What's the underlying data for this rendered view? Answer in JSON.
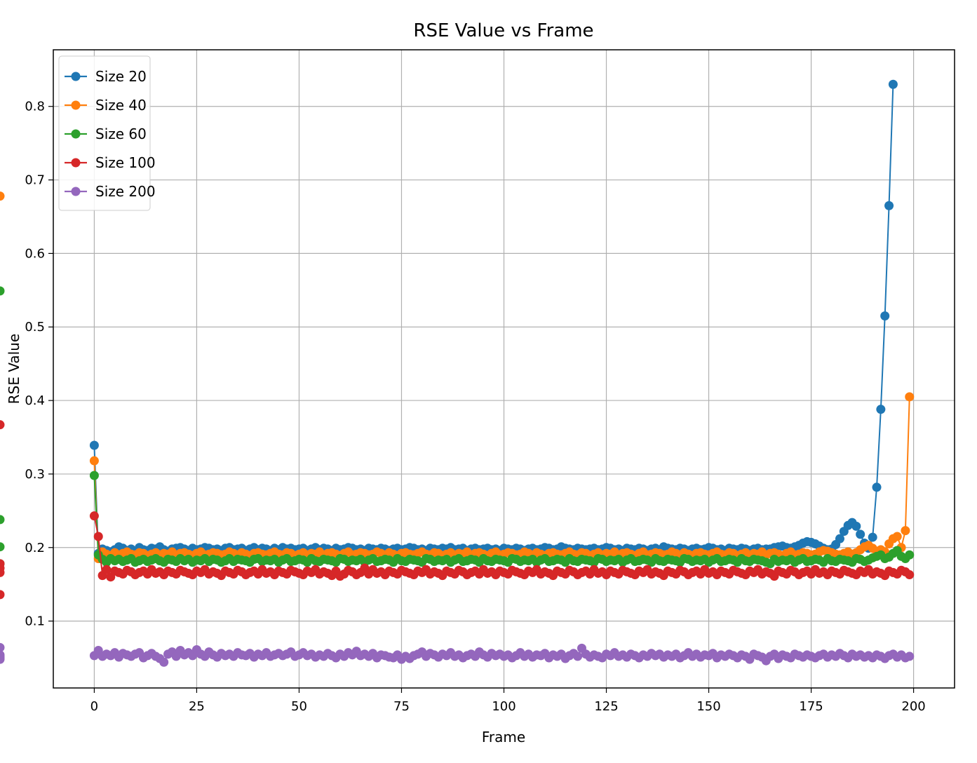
{
  "chart_data": {
    "type": "line",
    "title": "RSE Value vs Frame",
    "xlabel": "Frame",
    "ylabel": "RSE Value",
    "xlim": [
      -10,
      210
    ],
    "ylim": [
      0.009,
      0.877
    ],
    "xticks": [
      0,
      25,
      50,
      75,
      100,
      125,
      150,
      175,
      200
    ],
    "yticks": [
      0.1,
      0.2,
      0.3,
      0.4,
      0.5,
      0.6,
      0.7,
      0.8
    ],
    "grid": true,
    "legend_position": "top-left",
    "x": {
      "start": 0,
      "end": 199,
      "step": 1
    },
    "series": [
      {
        "name": "Size 20",
        "color": "#1f77b4",
        "values": [
          0.339,
          0.192,
          0.198,
          0.196,
          0.194,
          0.197,
          0.201,
          0.199,
          0.196,
          0.198,
          0.195,
          0.2,
          0.197,
          0.196,
          0.199,
          0.198,
          0.201,
          0.197,
          0.195,
          0.198,
          0.199,
          0.2,
          0.198,
          0.196,
          0.199,
          0.197,
          0.198,
          0.2,
          0.199,
          0.197,
          0.198,
          0.196,
          0.199,
          0.2,
          0.197,
          0.198,
          0.199,
          0.196,
          0.198,
          0.2,
          0.197,
          0.199,
          0.198,
          0.196,
          0.199,
          0.197,
          0.2,
          0.198,
          0.199,
          0.197,
          0.198,
          0.199,
          0.196,
          0.198,
          0.2,
          0.197,
          0.199,
          0.198,
          0.196,
          0.199,
          0.197,
          0.198,
          0.2,
          0.199,
          0.197,
          0.198,
          0.196,
          0.199,
          0.198,
          0.197,
          0.199,
          0.198,
          0.196,
          0.198,
          0.199,
          0.197,
          0.198,
          0.2,
          0.199,
          0.197,
          0.198,
          0.196,
          0.199,
          0.198,
          0.197,
          0.199,
          0.198,
          0.2,
          0.197,
          0.198,
          0.199,
          0.196,
          0.198,
          0.199,
          0.197,
          0.198,
          0.199,
          0.197,
          0.198,
          0.196,
          0.199,
          0.198,
          0.197,
          0.199,
          0.198,
          0.196,
          0.198,
          0.199,
          0.197,
          0.198,
          0.2,
          0.199,
          0.197,
          0.198,
          0.201,
          0.199,
          0.198,
          0.197,
          0.199,
          0.198,
          0.197,
          0.198,
          0.199,
          0.197,
          0.198,
          0.2,
          0.199,
          0.197,
          0.198,
          0.196,
          0.199,
          0.198,
          0.197,
          0.199,
          0.198,
          0.196,
          0.198,
          0.199,
          0.197,
          0.201,
          0.199,
          0.198,
          0.197,
          0.199,
          0.198,
          0.196,
          0.198,
          0.199,
          0.197,
          0.198,
          0.2,
          0.199,
          0.197,
          0.198,
          0.196,
          0.199,
          0.198,
          0.197,
          0.199,
          0.198,
          0.196,
          0.198,
          0.199,
          0.197,
          0.198,
          0.198,
          0.2,
          0.201,
          0.202,
          0.2,
          0.199,
          0.201,
          0.203,
          0.206,
          0.208,
          0.207,
          0.205,
          0.202,
          0.199,
          0.197,
          0.198,
          0.204,
          0.212,
          0.222,
          0.23,
          0.234,
          0.229,
          0.218,
          0.206,
          0.199,
          0.214,
          0.282,
          0.388,
          0.515,
          0.665,
          0.83
        ]
      },
      {
        "name": "Size 40",
        "color": "#ff7f0e",
        "values": [
          0.318,
          0.185,
          0.194,
          0.191,
          0.189,
          0.193,
          0.19,
          0.192,
          0.194,
          0.191,
          0.19,
          0.193,
          0.192,
          0.189,
          0.191,
          0.193,
          0.19,
          0.192,
          0.191,
          0.194,
          0.19,
          0.192,
          0.193,
          0.191,
          0.189,
          0.192,
          0.194,
          0.19,
          0.191,
          0.193,
          0.192,
          0.19,
          0.191,
          0.194,
          0.192,
          0.19,
          0.193,
          0.191,
          0.189,
          0.192,
          0.193,
          0.191,
          0.19,
          0.192,
          0.194,
          0.191,
          0.19,
          0.193,
          0.192,
          0.189,
          0.191,
          0.193,
          0.19,
          0.192,
          0.191,
          0.194,
          0.19,
          0.192,
          0.193,
          0.191,
          0.189,
          0.192,
          0.194,
          0.19,
          0.191,
          0.193,
          0.192,
          0.19,
          0.191,
          0.194,
          0.192,
          0.19,
          0.193,
          0.191,
          0.189,
          0.192,
          0.193,
          0.191,
          0.19,
          0.192,
          0.194,
          0.191,
          0.19,
          0.193,
          0.192,
          0.189,
          0.191,
          0.193,
          0.19,
          0.192,
          0.191,
          0.194,
          0.19,
          0.192,
          0.193,
          0.191,
          0.189,
          0.192,
          0.194,
          0.19,
          0.191,
          0.193,
          0.192,
          0.19,
          0.191,
          0.194,
          0.192,
          0.19,
          0.193,
          0.191,
          0.189,
          0.192,
          0.193,
          0.191,
          0.19,
          0.192,
          0.194,
          0.191,
          0.19,
          0.193,
          0.192,
          0.189,
          0.191,
          0.193,
          0.19,
          0.192,
          0.191,
          0.194,
          0.19,
          0.192,
          0.193,
          0.191,
          0.189,
          0.192,
          0.194,
          0.19,
          0.191,
          0.193,
          0.192,
          0.19,
          0.191,
          0.194,
          0.192,
          0.19,
          0.193,
          0.191,
          0.189,
          0.192,
          0.193,
          0.191,
          0.19,
          0.192,
          0.194,
          0.191,
          0.19,
          0.193,
          0.192,
          0.189,
          0.191,
          0.193,
          0.19,
          0.192,
          0.191,
          0.194,
          0.19,
          0.192,
          0.193,
          0.191,
          0.189,
          0.192,
          0.194,
          0.19,
          0.191,
          0.193,
          0.192,
          0.19,
          0.191,
          0.194,
          0.196,
          0.195,
          0.193,
          0.191,
          0.19,
          0.192,
          0.194,
          0.191,
          0.193,
          0.197,
          0.201,
          0.203,
          0.199,
          0.195,
          0.197,
          0.194,
          0.205,
          0.212,
          0.215,
          0.2,
          0.223,
          0.405,
          0.678
        ]
      },
      {
        "name": "Size 60",
        "color": "#2ca02c",
        "values": [
          0.298,
          0.19,
          0.184,
          0.18,
          0.185,
          0.182,
          0.184,
          0.181,
          0.183,
          0.185,
          0.18,
          0.182,
          0.184,
          0.181,
          0.183,
          0.185,
          0.182,
          0.18,
          0.184,
          0.183,
          0.181,
          0.185,
          0.182,
          0.184,
          0.18,
          0.183,
          0.182,
          0.185,
          0.181,
          0.184,
          0.183,
          0.18,
          0.182,
          0.185,
          0.181,
          0.184,
          0.183,
          0.182,
          0.18,
          0.184,
          0.185,
          0.181,
          0.183,
          0.182,
          0.184,
          0.18,
          0.183,
          0.185,
          0.181,
          0.182,
          0.184,
          0.183,
          0.18,
          0.185,
          0.182,
          0.181,
          0.184,
          0.183,
          0.182,
          0.18,
          0.185,
          0.184,
          0.181,
          0.183,
          0.182,
          0.184,
          0.18,
          0.183,
          0.185,
          0.181,
          0.182,
          0.184,
          0.183,
          0.18,
          0.185,
          0.182,
          0.181,
          0.184,
          0.183,
          0.182,
          0.18,
          0.185,
          0.184,
          0.181,
          0.183,
          0.182,
          0.184,
          0.18,
          0.183,
          0.185,
          0.181,
          0.182,
          0.184,
          0.183,
          0.18,
          0.185,
          0.182,
          0.181,
          0.184,
          0.183,
          0.182,
          0.18,
          0.185,
          0.184,
          0.181,
          0.183,
          0.182,
          0.184,
          0.18,
          0.183,
          0.185,
          0.181,
          0.182,
          0.184,
          0.183,
          0.18,
          0.185,
          0.182,
          0.181,
          0.184,
          0.183,
          0.182,
          0.18,
          0.185,
          0.184,
          0.181,
          0.183,
          0.182,
          0.184,
          0.18,
          0.183,
          0.185,
          0.181,
          0.182,
          0.184,
          0.183,
          0.18,
          0.185,
          0.182,
          0.181,
          0.184,
          0.183,
          0.182,
          0.18,
          0.185,
          0.184,
          0.181,
          0.183,
          0.182,
          0.184,
          0.18,
          0.183,
          0.185,
          0.181,
          0.182,
          0.184,
          0.183,
          0.18,
          0.185,
          0.182,
          0.181,
          0.184,
          0.183,
          0.182,
          0.18,
          0.178,
          0.184,
          0.181,
          0.183,
          0.182,
          0.184,
          0.18,
          0.183,
          0.185,
          0.181,
          0.182,
          0.184,
          0.183,
          0.18,
          0.185,
          0.182,
          0.181,
          0.184,
          0.183,
          0.182,
          0.18,
          0.185,
          0.184,
          0.181,
          0.183,
          0.186,
          0.188,
          0.19,
          0.185,
          0.187,
          0.192,
          0.196,
          0.188,
          0.185,
          0.19,
          0.201,
          0.178,
          0.238,
          0.549
        ]
      },
      {
        "name": "Size 100",
        "color": "#d62728",
        "values": [
          0.243,
          0.215,
          0.162,
          0.17,
          0.16,
          0.168,
          0.166,
          0.164,
          0.169,
          0.167,
          0.163,
          0.166,
          0.168,
          0.164,
          0.17,
          0.165,
          0.167,
          0.163,
          0.168,
          0.166,
          0.164,
          0.169,
          0.167,
          0.165,
          0.163,
          0.168,
          0.166,
          0.17,
          0.164,
          0.167,
          0.165,
          0.162,
          0.168,
          0.166,
          0.164,
          0.169,
          0.167,
          0.163,
          0.166,
          0.168,
          0.164,
          0.17,
          0.165,
          0.167,
          0.163,
          0.168,
          0.166,
          0.164,
          0.169,
          0.167,
          0.165,
          0.163,
          0.168,
          0.166,
          0.17,
          0.164,
          0.167,
          0.165,
          0.162,
          0.168,
          0.161,
          0.164,
          0.169,
          0.167,
          0.163,
          0.166,
          0.172,
          0.164,
          0.17,
          0.165,
          0.167,
          0.163,
          0.168,
          0.166,
          0.164,
          0.169,
          0.167,
          0.165,
          0.163,
          0.168,
          0.166,
          0.17,
          0.164,
          0.167,
          0.165,
          0.162,
          0.168,
          0.166,
          0.164,
          0.169,
          0.167,
          0.163,
          0.166,
          0.168,
          0.164,
          0.17,
          0.165,
          0.167,
          0.163,
          0.168,
          0.166,
          0.164,
          0.169,
          0.167,
          0.165,
          0.163,
          0.168,
          0.166,
          0.17,
          0.164,
          0.167,
          0.165,
          0.162,
          0.168,
          0.166,
          0.164,
          0.169,
          0.167,
          0.163,
          0.166,
          0.168,
          0.164,
          0.17,
          0.165,
          0.167,
          0.163,
          0.168,
          0.166,
          0.164,
          0.169,
          0.167,
          0.165,
          0.163,
          0.168,
          0.166,
          0.17,
          0.164,
          0.167,
          0.165,
          0.162,
          0.168,
          0.166,
          0.164,
          0.169,
          0.167,
          0.163,
          0.166,
          0.168,
          0.164,
          0.17,
          0.165,
          0.167,
          0.163,
          0.168,
          0.166,
          0.164,
          0.169,
          0.167,
          0.165,
          0.163,
          0.168,
          0.166,
          0.17,
          0.164,
          0.167,
          0.165,
          0.161,
          0.168,
          0.166,
          0.164,
          0.169,
          0.167,
          0.163,
          0.166,
          0.168,
          0.164,
          0.17,
          0.165,
          0.167,
          0.163,
          0.168,
          0.166,
          0.164,
          0.169,
          0.167,
          0.165,
          0.163,
          0.168,
          0.166,
          0.17,
          0.164,
          0.167,
          0.165,
          0.162,
          0.168,
          0.166,
          0.164,
          0.169,
          0.167,
          0.163,
          0.166,
          0.178,
          0.172,
          0.136,
          0.367
        ]
      },
      {
        "name": "Size 200",
        "color": "#9467bd",
        "values": [
          0.053,
          0.06,
          0.052,
          0.055,
          0.053,
          0.057,
          0.051,
          0.056,
          0.054,
          0.052,
          0.055,
          0.057,
          0.05,
          0.053,
          0.056,
          0.052,
          0.049,
          0.044,
          0.055,
          0.058,
          0.052,
          0.06,
          0.054,
          0.057,
          0.053,
          0.061,
          0.055,
          0.052,
          0.058,
          0.054,
          0.051,
          0.056,
          0.053,
          0.055,
          0.052,
          0.057,
          0.054,
          0.053,
          0.056,
          0.051,
          0.055,
          0.053,
          0.057,
          0.052,
          0.054,
          0.056,
          0.053,
          0.055,
          0.058,
          0.052,
          0.054,
          0.057,
          0.053,
          0.055,
          0.051,
          0.054,
          0.052,
          0.056,
          0.053,
          0.05,
          0.055,
          0.052,
          0.057,
          0.054,
          0.059,
          0.053,
          0.055,
          0.052,
          0.056,
          0.05,
          0.054,
          0.053,
          0.051,
          0.05,
          0.054,
          0.048,
          0.052,
          0.049,
          0.053,
          0.055,
          0.058,
          0.052,
          0.056,
          0.054,
          0.051,
          0.055,
          0.053,
          0.057,
          0.052,
          0.054,
          0.05,
          0.053,
          0.055,
          0.052,
          0.058,
          0.054,
          0.051,
          0.056,
          0.053,
          0.055,
          0.052,
          0.054,
          0.05,
          0.053,
          0.057,
          0.052,
          0.055,
          0.051,
          0.054,
          0.053,
          0.056,
          0.05,
          0.054,
          0.052,
          0.055,
          0.049,
          0.053,
          0.056,
          0.052,
          0.063,
          0.055,
          0.051,
          0.054,
          0.052,
          0.05,
          0.055,
          0.053,
          0.057,
          0.052,
          0.054,
          0.051,
          0.055,
          0.053,
          0.05,
          0.054,
          0.052,
          0.056,
          0.053,
          0.055,
          0.051,
          0.054,
          0.052,
          0.055,
          0.05,
          0.053,
          0.057,
          0.052,
          0.055,
          0.051,
          0.054,
          0.053,
          0.056,
          0.05,
          0.054,
          0.052,
          0.055,
          0.053,
          0.05,
          0.054,
          0.052,
          0.048,
          0.055,
          0.053,
          0.051,
          0.046,
          0.052,
          0.055,
          0.049,
          0.054,
          0.052,
          0.05,
          0.055,
          0.053,
          0.051,
          0.054,
          0.052,
          0.05,
          0.053,
          0.055,
          0.051,
          0.054,
          0.052,
          0.056,
          0.053,
          0.05,
          0.055,
          0.052,
          0.054,
          0.051,
          0.053,
          0.05,
          0.054,
          0.052,
          0.049,
          0.053,
          0.055,
          0.051,
          0.054,
          0.05,
          0.052,
          0.048,
          0.052,
          0.05,
          0.054,
          0.05,
          0.064
        ]
      }
    ]
  }
}
